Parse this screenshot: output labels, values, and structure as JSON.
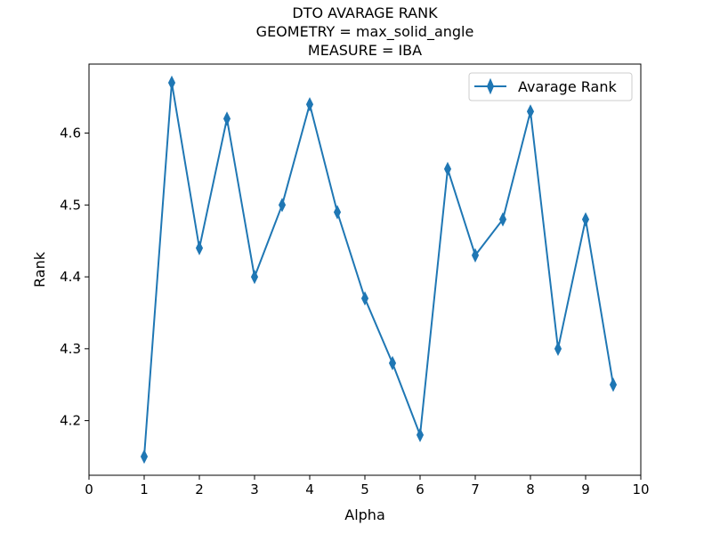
{
  "chart_data": {
    "type": "line",
    "title_lines": [
      "DTO AVARAGE RANK",
      "GEOMETRY = max_solid_angle",
      "MEASURE = IBA"
    ],
    "xlabel": "Alpha",
    "ylabel": "Rank",
    "xlim": [
      0,
      10
    ],
    "ylim": [
      4.124,
      4.696
    ],
    "x_ticks": [
      "0",
      "1",
      "2",
      "3",
      "4",
      "5",
      "6",
      "7",
      "8",
      "9",
      "10"
    ],
    "y_ticks": [
      "4.2",
      "4.3",
      "4.4",
      "4.5",
      "4.6"
    ],
    "grid": false,
    "legend_position": "top-right",
    "series": [
      {
        "name": "Avarage Rank",
        "color": "#1f77b4",
        "marker": "thin-diamond",
        "x": [
          1,
          1.5,
          2,
          2.5,
          3,
          3.5,
          4,
          4.5,
          5,
          5.5,
          6,
          6.5,
          7,
          7.5,
          8,
          8.5,
          9,
          9.5
        ],
        "y": [
          4.15,
          4.67,
          4.44,
          4.62,
          4.4,
          4.5,
          4.64,
          4.49,
          4.37,
          4.28,
          4.18,
          4.55,
          4.43,
          4.48,
          4.63,
          4.3,
          4.48,
          4.25
        ]
      }
    ]
  }
}
